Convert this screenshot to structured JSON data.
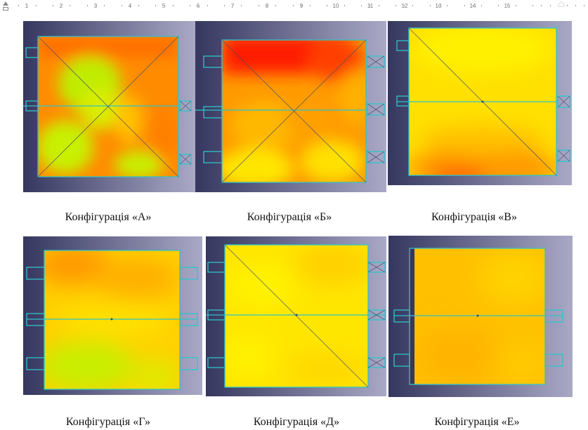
{
  "ruler": {
    "numbers": [
      "1",
      "2",
      "3",
      "4",
      "5",
      "6",
      "7",
      "8",
      "9",
      "10",
      "11",
      "12",
      "13",
      "14",
      "15"
    ]
  },
  "figures": [
    {
      "id": "A",
      "caption": "Конфігурація «А»"
    },
    {
      "id": "B",
      "caption": "Конфігурація «Б»"
    },
    {
      "id": "V",
      "caption": "Конфігурація «В»"
    },
    {
      "id": "H",
      "caption": "Конфігурація «Г»"
    },
    {
      "id": "D",
      "caption": "Конфігурація «Д»"
    },
    {
      "id": "E",
      "caption": "Конфігурація «Е»"
    }
  ],
  "colors": {
    "cyan_outline": "#2ec4c8",
    "background_dark": "#35375f",
    "background_light": "#a9a9c6",
    "heat_red": "#ff1a00",
    "heat_orange": "#ff9a00",
    "heat_yellow": "#ffe600",
    "heat_green": "#b8f000"
  }
}
